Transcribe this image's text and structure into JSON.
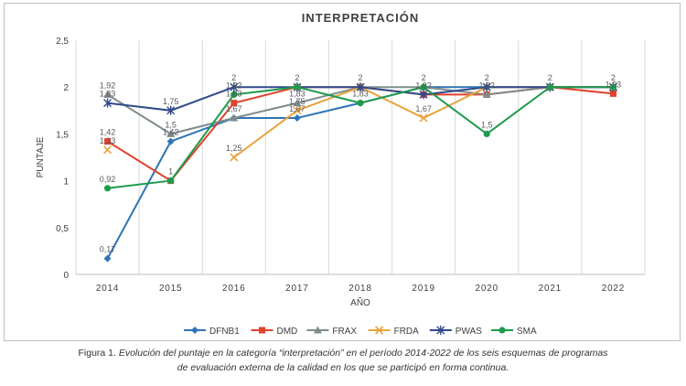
{
  "chart_data": {
    "type": "line",
    "title": "INTERPRETACIÓN",
    "xlabel": "AÑO",
    "ylabel": "PUNTAJE",
    "categories": [
      "2014",
      "2015",
      "2016",
      "2017",
      "2018",
      "2019",
      "2020",
      "2021",
      "2022"
    ],
    "ylim": [
      0,
      2.5
    ],
    "yticks": [
      "0",
      "0,5",
      "1",
      "1,5",
      "2",
      "2,5"
    ],
    "ytick_values": [
      0,
      0.5,
      1,
      1.5,
      2,
      2.5
    ],
    "grid": "vertical",
    "legend_position": "bottom",
    "series": [
      {
        "name": "DFNB1",
        "color": "#2e75b6",
        "marker": "diamond",
        "values": [
          0.17,
          1.42,
          1.67,
          1.67,
          1.83,
          2,
          2,
          2,
          2
        ]
      },
      {
        "name": "DMD",
        "color": "#e0422b",
        "marker": "square",
        "values": [
          1.42,
          1,
          1.83,
          2,
          2,
          1.92,
          1.92,
          2,
          1.93
        ]
      },
      {
        "name": "FRAX",
        "color": "#7f8c8d",
        "marker": "triangle",
        "values": [
          1.92,
          1.5,
          1.67,
          1.83,
          2,
          2,
          1.92,
          2,
          2
        ]
      },
      {
        "name": "FRDA",
        "color": "#e8a33d",
        "marker": "x",
        "values": [
          1.33,
          null,
          1.25,
          1.75,
          2,
          1.67,
          2,
          2,
          2
        ]
      },
      {
        "name": "PWAS",
        "color": "#2f4a8a",
        "marker": "star",
        "values": [
          1.83,
          1.75,
          2,
          2,
          2,
          1.92,
          2,
          2,
          2
        ]
      },
      {
        "name": "SMA",
        "color": "#1e9b4c",
        "marker": "circle",
        "values": [
          0.92,
          1,
          1.92,
          2,
          1.83,
          2,
          1.5,
          2,
          2
        ]
      }
    ],
    "data_labels": [
      {
        "category": "2014",
        "value": 1.92,
        "text": "1,92"
      },
      {
        "category": "2014",
        "value": 1.83,
        "text": "1,83"
      },
      {
        "category": "2014",
        "value": 1.42,
        "text": "1,42"
      },
      {
        "category": "2014",
        "value": 1.33,
        "text": "1,33"
      },
      {
        "category": "2014",
        "value": 0.92,
        "text": "0,92"
      },
      {
        "category": "2014",
        "value": 0.17,
        "text": "0,17"
      },
      {
        "category": "2015",
        "value": 1.75,
        "text": "1,75"
      },
      {
        "category": "2015",
        "value": 1.5,
        "text": "1,5"
      },
      {
        "category": "2015",
        "value": 1.42,
        "text": "1,42"
      },
      {
        "category": "2015",
        "value": 1,
        "text": "1"
      },
      {
        "category": "2016",
        "value": 2,
        "text": "2"
      },
      {
        "category": "2016",
        "value": 1.92,
        "text": "1,92"
      },
      {
        "category": "2016",
        "value": 1.83,
        "text": "1,83"
      },
      {
        "category": "2016",
        "value": 1.67,
        "text": "1,67"
      },
      {
        "category": "2016",
        "value": 1.25,
        "text": "1,25"
      },
      {
        "category": "2017",
        "value": 2,
        "text": "2"
      },
      {
        "category": "2017",
        "value": 1.83,
        "text": "1,83"
      },
      {
        "category": "2017",
        "value": 1.75,
        "text": "1,75"
      },
      {
        "category": "2017",
        "value": 1.67,
        "text": "1,67"
      },
      {
        "category": "2018",
        "value": 2,
        "text": "2"
      },
      {
        "category": "2018",
        "value": 1.83,
        "text": "1,83"
      },
      {
        "category": "2019",
        "value": 2,
        "text": "2"
      },
      {
        "category": "2019",
        "value": 1.92,
        "text": "1,92"
      },
      {
        "category": "2019",
        "value": 1.67,
        "text": "1,67"
      },
      {
        "category": "2020",
        "value": 2,
        "text": "2"
      },
      {
        "category": "2020",
        "value": 1.92,
        "text": "1,92"
      },
      {
        "category": "2020",
        "value": 1.5,
        "text": "1,5"
      },
      {
        "category": "2021",
        "value": 2,
        "text": "2"
      },
      {
        "category": "2022",
        "value": 2,
        "text": "2"
      },
      {
        "category": "2022",
        "value": 1.93,
        "text": "1,93"
      }
    ]
  },
  "caption": {
    "prefix": "Figura 1. ",
    "line1_italic": "Evolución del puntaje en la categoría “interpretación” en el período 2014-2022 de los seis esquemas de programas",
    "line2_italic": "de evaluación externa de la calidad en los que se participó en forma continua."
  }
}
